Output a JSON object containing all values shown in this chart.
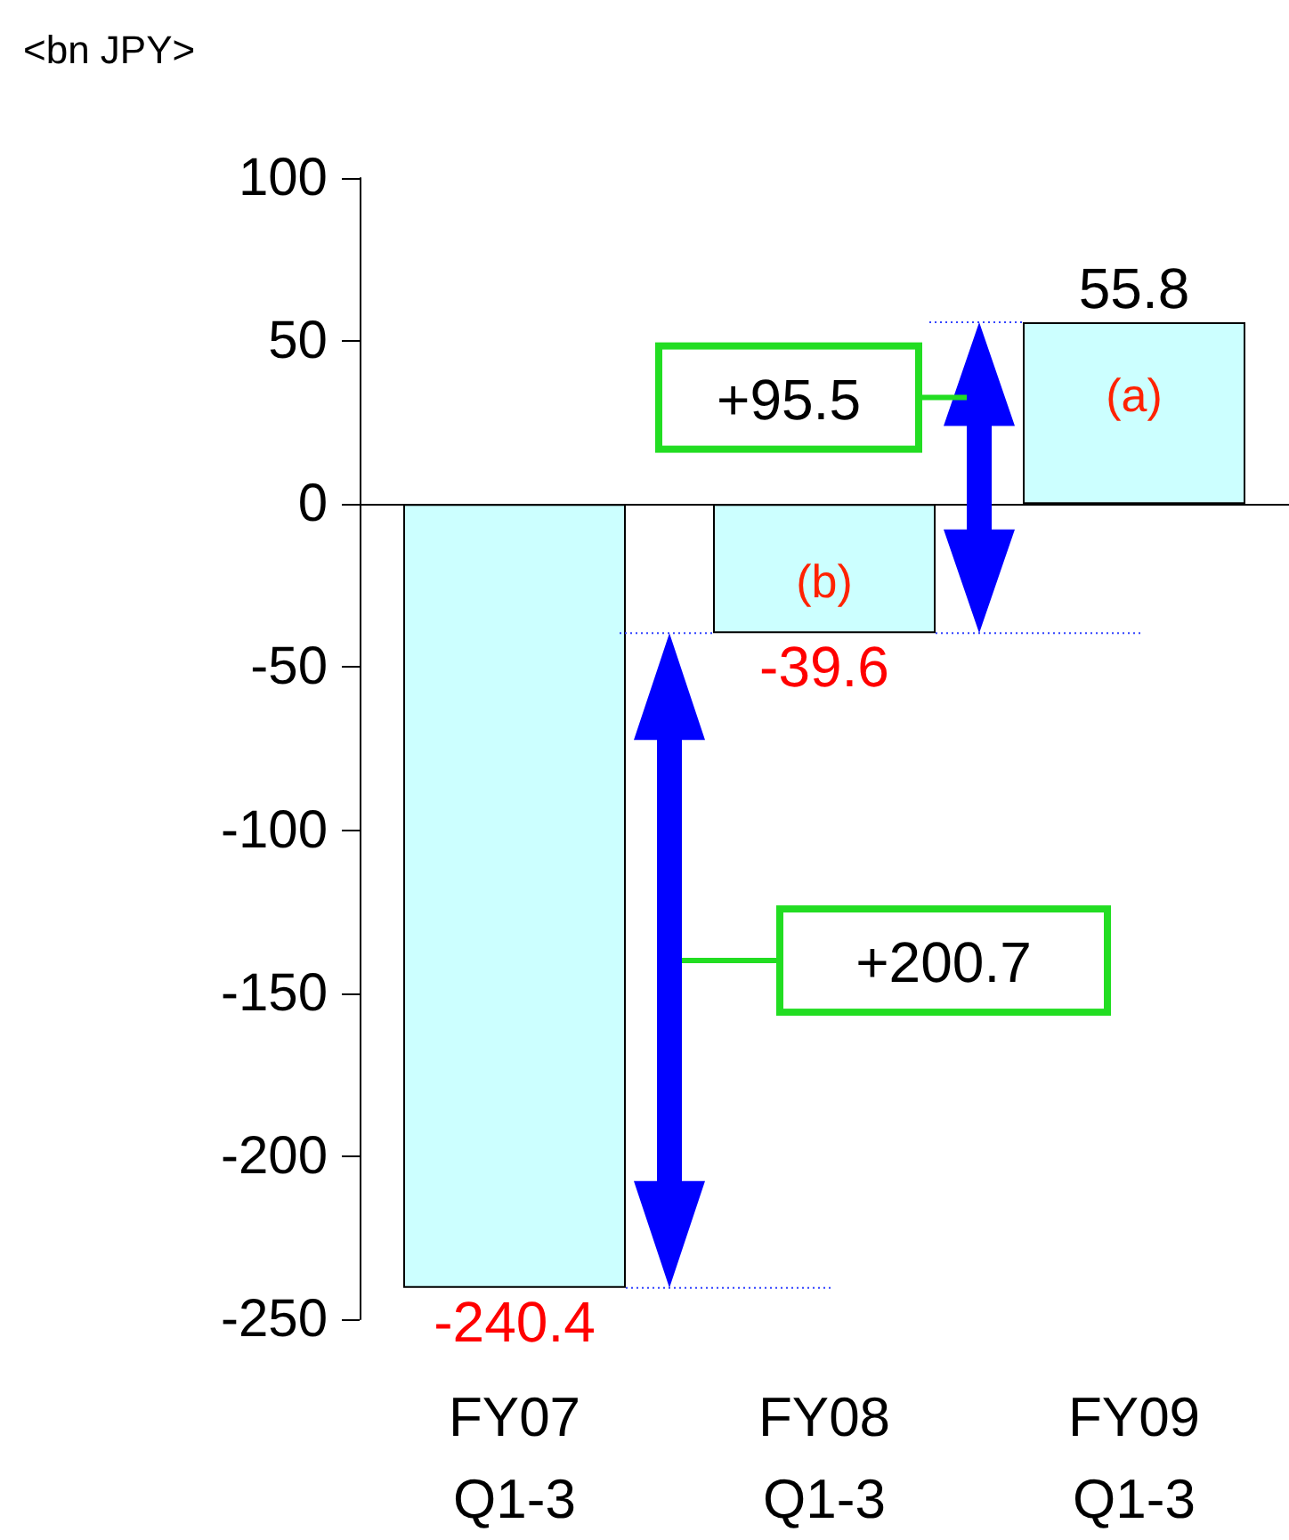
{
  "chart_data": {
    "type": "bar",
    "ylabel": "<bn JPY>",
    "categories": [
      "FY07\nQ1-3",
      "FY08\nQ1-3",
      "FY09\nQ1-3"
    ],
    "values": [
      -240.4,
      -39.6,
      55.8
    ],
    "color": "#ccffff",
    "ylim": [
      -250,
      100
    ],
    "yticks": [
      -250,
      -200,
      -150,
      -100,
      -50,
      0,
      50,
      100
    ],
    "data_labels": true,
    "annotations": [
      "+200.7",
      "+95.5",
      "(a)",
      "(b)"
    ]
  }
}
